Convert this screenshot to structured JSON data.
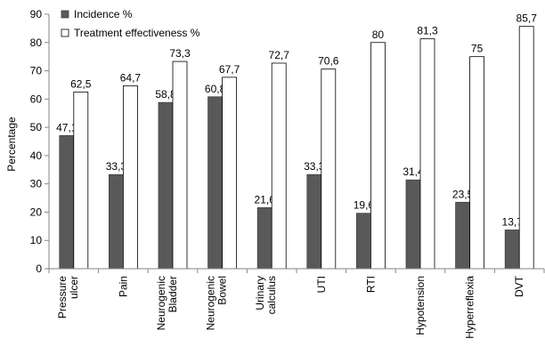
{
  "chart_data": {
    "type": "bar",
    "title": "",
    "xlabel": "",
    "ylabel": "Percentage",
    "ylim": [
      0,
      90
    ],
    "yticks": [
      0,
      10,
      20,
      30,
      40,
      50,
      60,
      70,
      80,
      90
    ],
    "grid": false,
    "legend_position": "top-left",
    "categories": [
      [
        "Pressure",
        "ulcer"
      ],
      [
        "Pain"
      ],
      [
        "Neurogenic",
        "Bladder"
      ],
      [
        "Neurogenic",
        "Bowel"
      ],
      [
        "Urinary",
        "calculus"
      ],
      [
        "UTI"
      ],
      [
        "RTI"
      ],
      [
        "Hypotension"
      ],
      [
        "Hyperreflexia"
      ],
      [
        "DVT"
      ]
    ],
    "series": [
      {
        "name": "Incidence %",
        "color": "#595959",
        "values": [
          47.1,
          33.3,
          58.8,
          60.8,
          21.6,
          33.3,
          19.6,
          31.4,
          23.5,
          13.7
        ],
        "labels": [
          "47,1",
          "33,3",
          "58,8",
          "60,8",
          "21,6",
          "33,3",
          "19,6",
          "31,4",
          "23,5",
          "13,7"
        ]
      },
      {
        "name": "Treatment effectiveness %",
        "color": "#ffffff",
        "values": [
          62.5,
          64.7,
          73.3,
          67.7,
          72.7,
          70.6,
          80,
          81.3,
          75,
          85.7
        ],
        "labels": [
          "62,5",
          "64,7",
          "73,3",
          "67,7",
          "72,7",
          "70,6",
          "80",
          "81,3",
          "75",
          "85,7"
        ]
      }
    ]
  }
}
